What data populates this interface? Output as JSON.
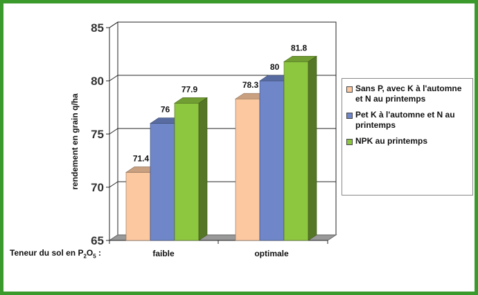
{
  "chart_data": {
    "type": "bar",
    "categories": [
      "faible",
      "optimale"
    ],
    "series": [
      {
        "name": "Sans P, avec K à l'automne et N au printemps",
        "values": [
          71.4,
          78.3
        ],
        "color": "#fbc8a0"
      },
      {
        "name": "Pet K à l'automne et N au printemps",
        "values": [
          76,
          80
        ],
        "color": "#6f87c9"
      },
      {
        "name": "NPK au printemps",
        "values": [
          77.9,
          81.8
        ],
        "color": "#8dc63f"
      }
    ],
    "value_labels": [
      [
        "71.4",
        "78.3"
      ],
      [
        "76",
        "80"
      ],
      [
        "77.9",
        "81.8"
      ]
    ],
    "ylabel": "rendement en grain q/ha",
    "yticks": [
      "65",
      "70",
      "75",
      "80",
      "85"
    ],
    "ylim": [
      65,
      85
    ],
    "grid": true,
    "legend_position": "right",
    "xaxis_prefix": {
      "main": "Teneur du sol en P",
      "sub1": "2",
      "mid": "O",
      "sub2": "5",
      "end": " :"
    }
  }
}
